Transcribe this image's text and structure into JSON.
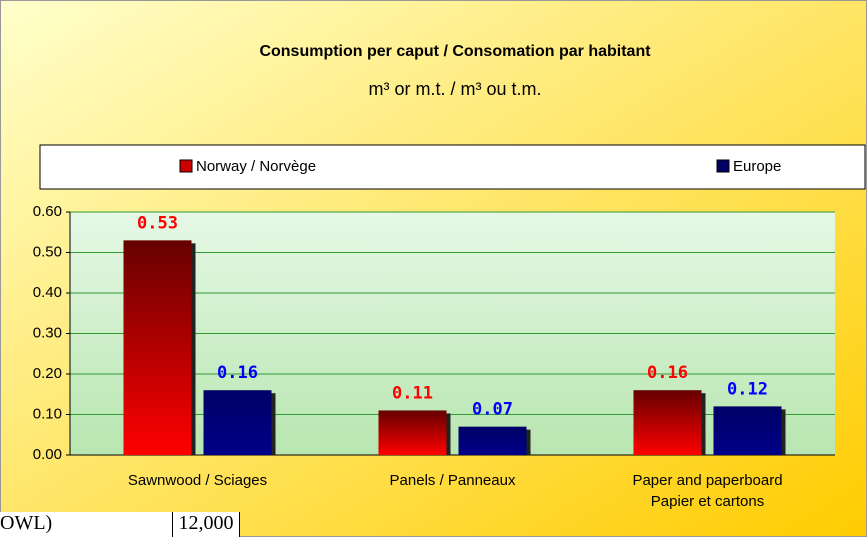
{
  "chart_data": {
    "type": "bar",
    "title": "Consumption per caput / Consomation par habitant",
    "subtitle": "m³ or m.t. / m³ ou t.m.",
    "categories": [
      "Sawnwood / Sciages",
      "Panels / Panneaux",
      "Paper and paperboard\nPapier et cartons"
    ],
    "series": [
      {
        "name": "Norway / Norvège",
        "color": "#cc0000",
        "label_color": "#ff0000",
        "values": [
          0.53,
          0.11,
          0.16
        ]
      },
      {
        "name": "Europe",
        "color": "#000066",
        "label_color": "#0000ff",
        "values": [
          0.16,
          0.07,
          0.12
        ]
      }
    ],
    "ylim": [
      0,
      0.6
    ],
    "yticks": [
      {
        "value": 0,
        "label": "0.00"
      },
      {
        "value": 0.1,
        "label": "0.10"
      },
      {
        "value": 0.2,
        "label": "0.20"
      },
      {
        "value": 0.3,
        "label": "0.30"
      },
      {
        "value": 0.4,
        "label": "0.40"
      },
      {
        "value": 0.5,
        "label": "0.50"
      },
      {
        "value": 0.6,
        "label": "0.60"
      }
    ],
    "grid": true,
    "legend": "top"
  },
  "table_fragment": {
    "cells": [
      "OWL)",
      "12,000"
    ]
  }
}
